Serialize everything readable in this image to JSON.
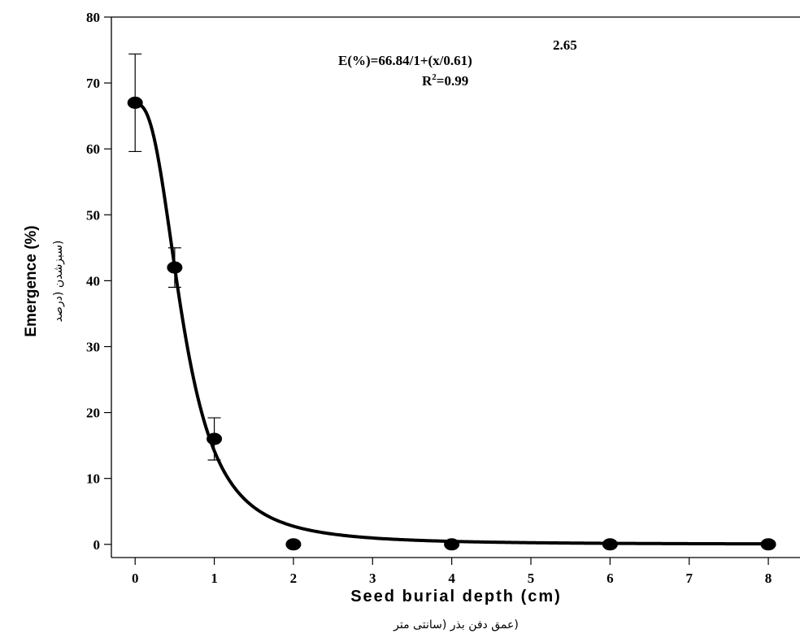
{
  "chart_data": {
    "type": "scatter",
    "xlabel": "Seed burial depth (cm)",
    "xlabel_secondary": "(عمق دفن بذر (سانتی متر",
    "ylabel": "Emergence (%)",
    "ylabel_secondary": "(سبزشدن (درصد",
    "xlim": [
      -0.3,
      8.4
    ],
    "ylim": [
      -2,
      80
    ],
    "x_ticks": [
      0,
      1,
      2,
      3,
      4,
      5,
      6,
      7,
      8
    ],
    "y_ticks": [
      0,
      10,
      20,
      30,
      40,
      50,
      60,
      70,
      80
    ],
    "grid": false,
    "series": [
      {
        "x": [
          0,
          0.5,
          1,
          2,
          4,
          6,
          8
        ],
        "y": [
          67,
          42,
          16,
          0,
          0,
          0,
          0
        ],
        "error": [
          7.4,
          3,
          3.2,
          null,
          null,
          null,
          null
        ],
        "marker": "circle",
        "color": "#000000"
      }
    ],
    "fit": {
      "model": "sigmoid",
      "a": 66.84,
      "x50": 0.61,
      "b": 2.65,
      "color": "#000000"
    },
    "annotations": {
      "equation": "E(%)=66.84/1+(x/0.61)",
      "exponent": "2.65",
      "r2_prefix": "R",
      "r2_sup": "2",
      "r2_value": "=0.99"
    }
  }
}
